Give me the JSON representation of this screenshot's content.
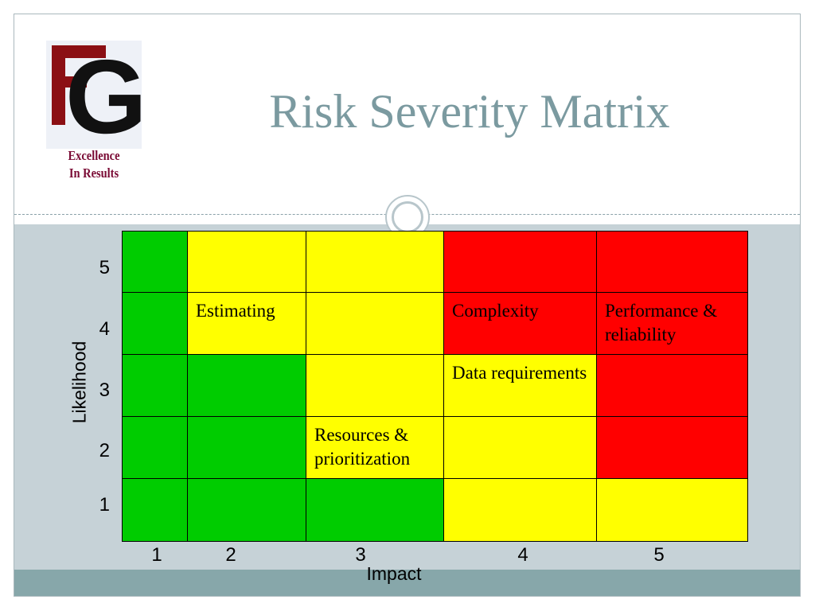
{
  "slide": {
    "title": "Risk Severity Matrix",
    "logo": {
      "letters": "FG",
      "tagline_line1": "Excellence",
      "tagline_line2": "In Results"
    }
  },
  "colors": {
    "green": "#00cc00",
    "yellow": "#ffff00",
    "red": "#ff0000",
    "title": "#7b9aa0",
    "band": "#87a7aa",
    "content_bg": "#c6d2d7"
  },
  "matrix": {
    "x_axis_title": "Impact",
    "y_axis_title": "Likelihood",
    "x_labels": [
      "1",
      "2",
      "3",
      "4",
      "5"
    ],
    "y_labels": [
      "5",
      "4",
      "3",
      "2",
      "1"
    ],
    "rows": [
      {
        "likelihood": "5",
        "cells": [
          {
            "color": "green",
            "text": ""
          },
          {
            "color": "yellow",
            "text": ""
          },
          {
            "color": "yellow",
            "text": ""
          },
          {
            "color": "red",
            "text": ""
          },
          {
            "color": "red",
            "text": ""
          }
        ]
      },
      {
        "likelihood": "4",
        "cells": [
          {
            "color": "green",
            "text": ""
          },
          {
            "color": "yellow",
            "text": "Estimating"
          },
          {
            "color": "yellow",
            "text": ""
          },
          {
            "color": "red",
            "text": "Complexity"
          },
          {
            "color": "red",
            "text": "Performance & reliability"
          }
        ]
      },
      {
        "likelihood": "3",
        "cells": [
          {
            "color": "green",
            "text": ""
          },
          {
            "color": "green",
            "text": ""
          },
          {
            "color": "yellow",
            "text": ""
          },
          {
            "color": "yellow",
            "text": "Data requirements"
          },
          {
            "color": "red",
            "text": ""
          }
        ]
      },
      {
        "likelihood": "2",
        "cells": [
          {
            "color": "green",
            "text": ""
          },
          {
            "color": "green",
            "text": ""
          },
          {
            "color": "yellow",
            "text": "Resources & prioritization"
          },
          {
            "color": "yellow",
            "text": ""
          },
          {
            "color": "red",
            "text": ""
          }
        ]
      },
      {
        "likelihood": "1",
        "cells": [
          {
            "color": "green",
            "text": ""
          },
          {
            "color": "green",
            "text": ""
          },
          {
            "color": "green",
            "text": ""
          },
          {
            "color": "yellow",
            "text": ""
          },
          {
            "color": "yellow",
            "text": ""
          }
        ]
      }
    ]
  }
}
